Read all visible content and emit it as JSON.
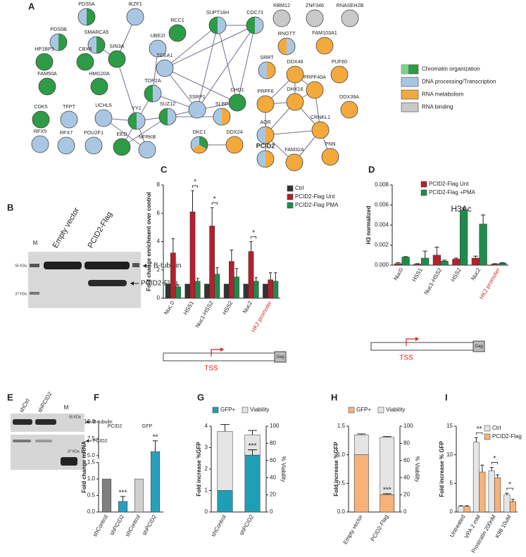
{
  "panel_labels": [
    "A",
    "B",
    "C",
    "D",
    "E",
    "F",
    "G",
    "H",
    "I"
  ],
  "network": {
    "nodes": [
      "PDS5A",
      "IKZF1",
      "RCC1",
      "SUPT16H",
      "CDC73",
      "RBM12",
      "ZNF346",
      "RNASEH2B",
      "PDS5B",
      "SMARCA5",
      "UBE2I",
      "SIN3A",
      "TCEA1",
      "RNGTT",
      "FAM103A1",
      "SRRT",
      "HP1BP3",
      "CBX8",
      "DDX46",
      "PUF60",
      "TOP2A",
      "SSRP1",
      "CHD1",
      "PRPF6",
      "PRPF40A",
      "FAM50A",
      "HMG20A",
      "DDX39A",
      "DHX16",
      "CDK5",
      "TFPT",
      "UCHL5",
      "YY1",
      "SUZ12",
      "SLBP",
      "AQR",
      "CRNKL1",
      "RFX5",
      "RFX7",
      "POU2F1",
      "EED",
      "NFRKB",
      "DKC1",
      "DDX24",
      "PCID2",
      "FAM32A",
      "PNN"
    ],
    "legend": [
      "Chromatin organization",
      "DNA processing/Transcription",
      "RNA metabolism",
      "RNA binding"
    ]
  },
  "blot_b": {
    "lanes": [
      "M",
      "Empty vector",
      "PCID2-Flag"
    ],
    "markers": [
      "55 KDa",
      "37 KDa"
    ],
    "bands": [
      "B-tubulin",
      "PCID2-Flag"
    ]
  },
  "blot_e": {
    "lanes": [
      "shCtrl",
      "shPCID2",
      "M"
    ],
    "markers": [
      "55 KDa",
      "37 KDa"
    ],
    "bands": [
      "B-tubulin",
      "PCID2"
    ]
  },
  "gene_diagram": {
    "tss": "TSS",
    "gene": "Gag"
  },
  "chart_data": [
    {
      "type": "bar",
      "ylabel": "Fold change enrichment over control",
      "categories": [
        "Nuc 0",
        "HSS1",
        "Nuc1-HSS2",
        "HSS2",
        "Nuc2",
        "HK2 promoter"
      ],
      "category_colors": [
        "#222222",
        "#222222",
        "#222222",
        "#222222",
        "#222222",
        "#d62728"
      ],
      "ylim": [
        0,
        8
      ],
      "yticks": [
        0,
        2,
        4,
        6,
        8
      ],
      "series": [
        {
          "name": "Ctrl",
          "color": "#333333",
          "values": [
            1,
            1,
            1,
            1,
            1,
            1
          ]
        },
        {
          "name": "PCID2-Flag Unt",
          "color": "#b5202e",
          "values": [
            3.2,
            6.1,
            5.1,
            2.6,
            3.3,
            1.3
          ],
          "errors": [
            1.0,
            1.5,
            1.3,
            0.8,
            0.7,
            0.5
          ]
        },
        {
          "name": "PCID2-Flag PMA",
          "color": "#1e8b4c",
          "values": [
            0.8,
            1.2,
            1.7,
            1.5,
            1.2,
            1.2
          ],
          "errors": [
            0.15,
            0.2,
            0.45,
            0.6,
            0.25,
            0.6
          ]
        }
      ],
      "significance": [
        null,
        "*",
        "*",
        null,
        "*",
        null
      ]
    },
    {
      "type": "bar",
      "title": "H3Ac",
      "ylabel": "H3 normalized",
      "categories": [
        "Nuc0",
        "HSS1",
        "Nuc1-HSS2",
        "HSS2",
        "Nuc2",
        "HK2 promoter"
      ],
      "category_colors": [
        "#222222",
        "#222222",
        "#222222",
        "#222222",
        "#222222",
        "#d62728"
      ],
      "ylim": [
        0,
        0.008
      ],
      "yticks": [
        {
          "value": 0,
          "label": "0.000"
        },
        {
          "value": 0.002,
          "label": "0.002"
        },
        {
          "value": 0.004,
          "label": "0.004"
        },
        {
          "value": 0.006,
          "label": "0.006"
        },
        {
          "value": 0.008,
          "label": "0.008"
        }
      ],
      "series": [
        {
          "name": "PCID2-Flag Unt",
          "color": "#b5202e",
          "values": [
            0.00015,
            0.0001,
            0.001,
            0.0006,
            0.0007,
            0.0001
          ],
          "errors": [
            0.0001,
            5e-05,
            0.0008,
            0.0001,
            0.0002,
            5e-05
          ]
        },
        {
          "name": "PCID2-Flag +PMA",
          "color": "#1e8b4c",
          "values": [
            0.0008,
            0.0007,
            0.0004,
            0.0055,
            0.0041,
            0.0002
          ],
          "errors": [
            5e-05,
            0.0007,
            0.0001,
            0.0002,
            0.0009,
            5e-05
          ]
        }
      ]
    },
    {
      "type": "bar",
      "ylabel": "Fold change mRNA",
      "groups": [
        "PCID2",
        "GFP"
      ],
      "categories": [
        "shControl",
        "shPCID2",
        "shControl",
        "shPCID2"
      ],
      "colors": [
        "#7f7f7f",
        "#2a9fbc",
        "#cfcfcf",
        "#2a9fbc"
      ],
      "values": [
        1,
        0.32,
        1,
        5.6
      ],
      "errors": [
        null,
        0.15,
        null,
        1.6
      ],
      "significance": [
        null,
        "***",
        null,
        "**"
      ],
      "ylim": [
        0,
        10
      ],
      "ybreak": [
        1.5,
        4.5
      ],
      "yticks": [
        {
          "value": 0,
          "label": "0.0"
        },
        {
          "value": 0.5,
          "label": "0.5"
        },
        {
          "value": 1,
          "label": "1.0"
        },
        {
          "value": 1.5,
          "label": "1.5"
        },
        {
          "value": 5,
          "label": "5.0"
        },
        {
          "value": 7.5,
          "label": "7.5"
        },
        {
          "value": 10,
          "label": "10.0"
        }
      ]
    },
    {
      "type": "bar",
      "overlay": true,
      "ylabel": "Fold increase %GFP",
      "y2label": "% Viability",
      "categories": [
        "shControl",
        "shPCID2"
      ],
      "ylim": [
        0,
        4
      ],
      "yticks": [
        0,
        1,
        2,
        3,
        4
      ],
      "y2lim": [
        0,
        100
      ],
      "y2ticks": [
        0,
        20,
        40,
        60,
        80,
        100
      ],
      "series": [
        {
          "name": "GFP+",
          "color": "#1f9fb5",
          "values": [
            1,
            2.65
          ],
          "errors": [
            null,
            0.25
          ]
        },
        {
          "name": "Viability",
          "color": "#e4e4e4",
          "axis": "y2",
          "values": [
            94,
            90
          ],
          "errors": [
            8,
            5
          ]
        }
      ],
      "significance": [
        null,
        "***"
      ]
    },
    {
      "type": "bar",
      "overlay": true,
      "ylabel": "Fold increase %GFP",
      "y2label": "% Viability",
      "categories": [
        "Empty vector",
        "PCID2-Flag"
      ],
      "ylim": [
        0,
        1.5
      ],
      "yticks": [
        {
          "value": 0,
          "label": "0.0"
        },
        {
          "value": 0.5,
          "label": "0.5"
        },
        {
          "value": 1,
          "label": "1.0"
        },
        {
          "value": 1.5,
          "label": "1.5"
        }
      ],
      "y2lim": [
        0,
        100
      ],
      "y2ticks": [
        0,
        20,
        40,
        60,
        80,
        100
      ],
      "series": [
        {
          "name": "GFP+",
          "color": "#f7b27a",
          "values": [
            1,
            0.3
          ],
          "errors": [
            null,
            0.02
          ]
        },
        {
          "name": "Viability",
          "color": "#e4e4e4",
          "axis": "y2",
          "values": [
            90,
            87
          ],
          "errors": [
            1,
            1
          ]
        }
      ],
      "significance": [
        null,
        "***"
      ]
    },
    {
      "type": "bar",
      "ylabel": "Fold increase % GFP",
      "categories": [
        "Untreated",
        "VPA 2 mM",
        "Prostratin 200nM",
        "K98 10uM"
      ],
      "ylim": [
        0,
        15
      ],
      "yticks": [
        0,
        5,
        10,
        15
      ],
      "series": [
        {
          "name": "Ctrl",
          "color": "#e6e6e6",
          "values": [
            1,
            12.2,
            7.2,
            3
          ],
          "errors": [
            0.1,
            0.8,
            0.6,
            0.3
          ]
        },
        {
          "name": "PCID2-Flag",
          "color": "#f7b27a",
          "values": [
            1,
            7,
            6,
            1.8
          ],
          "errors": [
            0.1,
            1.2,
            0.5,
            0.4
          ]
        }
      ],
      "significance": [
        null,
        "**",
        "*",
        "*"
      ]
    }
  ]
}
